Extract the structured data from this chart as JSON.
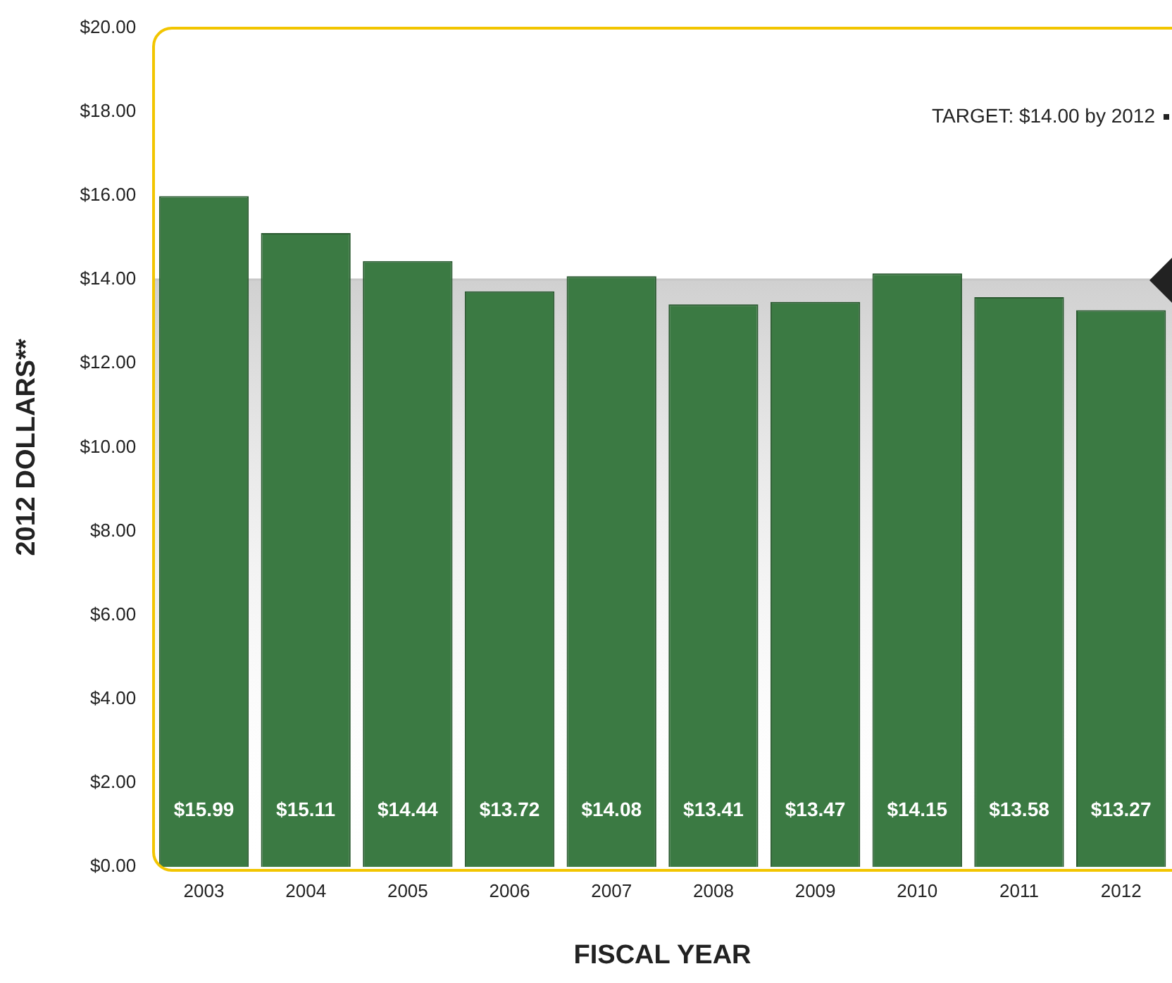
{
  "chart_data": {
    "type": "bar",
    "xlabel": "FISCAL YEAR",
    "ylabel": "2012 DOLLARS**",
    "categories": [
      "2003",
      "2004",
      "2005",
      "2006",
      "2007",
      "2008",
      "2009",
      "2010",
      "2011",
      "2012"
    ],
    "values": [
      15.99,
      15.11,
      14.44,
      13.72,
      14.08,
      13.41,
      13.47,
      14.15,
      13.58,
      13.27
    ],
    "value_labels": [
      "$15.99",
      "$15.11",
      "$14.44",
      "$13.72",
      "$14.08",
      "$13.41",
      "$13.47",
      "$14.15",
      "$13.58",
      "$13.27"
    ],
    "color": "#3b7a43",
    "ylim": [
      0,
      20
    ],
    "yticks": [
      {
        "value": 0,
        "label": "$0.00"
      },
      {
        "value": 2,
        "label": "$2.00"
      },
      {
        "value": 4,
        "label": "$4.00"
      },
      {
        "value": 6,
        "label": "$6.00"
      },
      {
        "value": 8,
        "label": "$8.00"
      },
      {
        "value": 10,
        "label": "$10.00"
      },
      {
        "value": 12,
        "label": "$12.00"
      },
      {
        "value": 14,
        "label": "$14.00"
      },
      {
        "value": 16,
        "label": "$16.00"
      },
      {
        "value": 18,
        "label": "$18.00"
      },
      {
        "value": 20,
        "label": "$20.00"
      }
    ],
    "ref_lines": [
      {
        "axis": "y",
        "value": 14,
        "color": "#c8c8c8"
      }
    ],
    "annotations": [
      "TARGET: $14.00 by 2012"
    ],
    "bands": [
      {
        "axis": "y",
        "from": 0,
        "to": 14,
        "color": "#d0d0d0"
      }
    ],
    "grid": false,
    "legend": false
  }
}
